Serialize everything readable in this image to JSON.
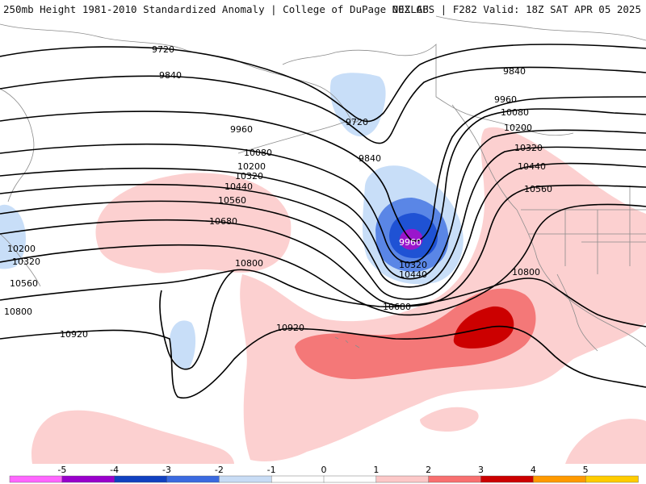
{
  "header": {
    "left": "250mb Height 1981-2010 Standardized Anomaly | College of DuPage NEXLAB",
    "right": "00Z GFS | F282 Valid: 18Z SAT APR 05 2025"
  },
  "colorbar": {
    "ticks": [
      "-5",
      "-4",
      "-3",
      "-2",
      "-1",
      "0",
      "1",
      "2",
      "3",
      "4",
      "5"
    ],
    "colors": [
      "#ff66ff",
      "#9900cc",
      "#1040c0",
      "#3a6ae0",
      "#c8dcf5",
      "#ffffff",
      "#ffffff",
      "#fcc8c8",
      "#f87070",
      "#cc0000",
      "#ff9900",
      "#ffcc00"
    ]
  },
  "colors": {
    "pos1": "#fcd0d0",
    "pos2": "#f47878",
    "pos3": "#cc0000",
    "neg1": "#c8def8",
    "neg2": "#5a86e6",
    "neg3": "#1f52d4",
    "neg5": "#9a16cc",
    "contour": "#000000",
    "coast": "#8c8c8c"
  },
  "contour_labels": [
    {
      "id": "9720-a",
      "text": "9720"
    },
    {
      "id": "9840-a",
      "text": "9840"
    },
    {
      "id": "9960-a",
      "text": "9960"
    },
    {
      "id": "10080-a",
      "text": "10080"
    },
    {
      "id": "10200-a",
      "text": "10200"
    },
    {
      "id": "10320-a",
      "text": "10320"
    },
    {
      "id": "10440-a",
      "text": "10440"
    },
    {
      "id": "10560-a",
      "text": "10560"
    },
    {
      "id": "10680-a",
      "text": "10680"
    },
    {
      "id": "10800-a",
      "text": "10800"
    },
    {
      "id": "10920-a",
      "text": "10920"
    },
    {
      "id": "9720-b",
      "text": "9720"
    },
    {
      "id": "9840-b",
      "text": "9840"
    },
    {
      "id": "9960-low",
      "text": "9960"
    },
    {
      "id": "10320-low",
      "text": "10320"
    },
    {
      "id": "10440-low",
      "text": "10440"
    },
    {
      "id": "10680-b",
      "text": "10680"
    },
    {
      "id": "10920-b",
      "text": "10920"
    },
    {
      "id": "10800-b",
      "text": "10800"
    },
    {
      "id": "9840-r",
      "text": "9840"
    },
    {
      "id": "9960-r",
      "text": "9960"
    },
    {
      "id": "10080-r",
      "text": "10080"
    },
    {
      "id": "10200-r",
      "text": "10200"
    },
    {
      "id": "10320-r",
      "text": "10320"
    },
    {
      "id": "10440-r",
      "text": "10440"
    },
    {
      "id": "10560-r",
      "text": "10560"
    },
    {
      "id": "10200-w",
      "text": "10200"
    },
    {
      "id": "10320-w",
      "text": "10320"
    },
    {
      "id": "10560-w",
      "text": "10560"
    },
    {
      "id": "10800-w",
      "text": "10800"
    }
  ]
}
